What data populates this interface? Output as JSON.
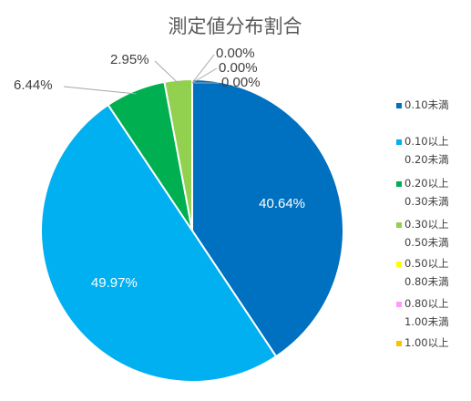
{
  "chart_data": {
    "type": "pie",
    "title": "測定値分布割合",
    "categories": [
      "0.10未満",
      "0.10以上 0.20未満",
      "0.20以上 0.30未満",
      "0.30以上 0.50未満",
      "0.50以上 0.80未満",
      "0.80以上 1.00未満",
      "1.00以上"
    ],
    "legend_lines": [
      [
        "0.10未満"
      ],
      [
        "0.10以上",
        "0.20未満"
      ],
      [
        "0.20以上",
        "0.30未満"
      ],
      [
        "0.30以上",
        "0.50未満"
      ],
      [
        "0.50以上",
        "0.80未満"
      ],
      [
        "0.80以上",
        "1.00未満"
      ],
      [
        "1.00以上"
      ]
    ],
    "values": [
      40.64,
      49.97,
      6.44,
      2.95,
      0.0,
      0.0,
      0.0
    ],
    "labels": [
      "40.64%",
      "49.97%",
      "6.44%",
      "2.95%",
      "0.00%",
      "0.00%",
      "0.00%"
    ],
    "colors": [
      "#0070c0",
      "#00b0f0",
      "#00b050",
      "#92d050",
      "#ffff00",
      "#ff99ff",
      "#ffc000"
    ],
    "legend_position": "right"
  }
}
